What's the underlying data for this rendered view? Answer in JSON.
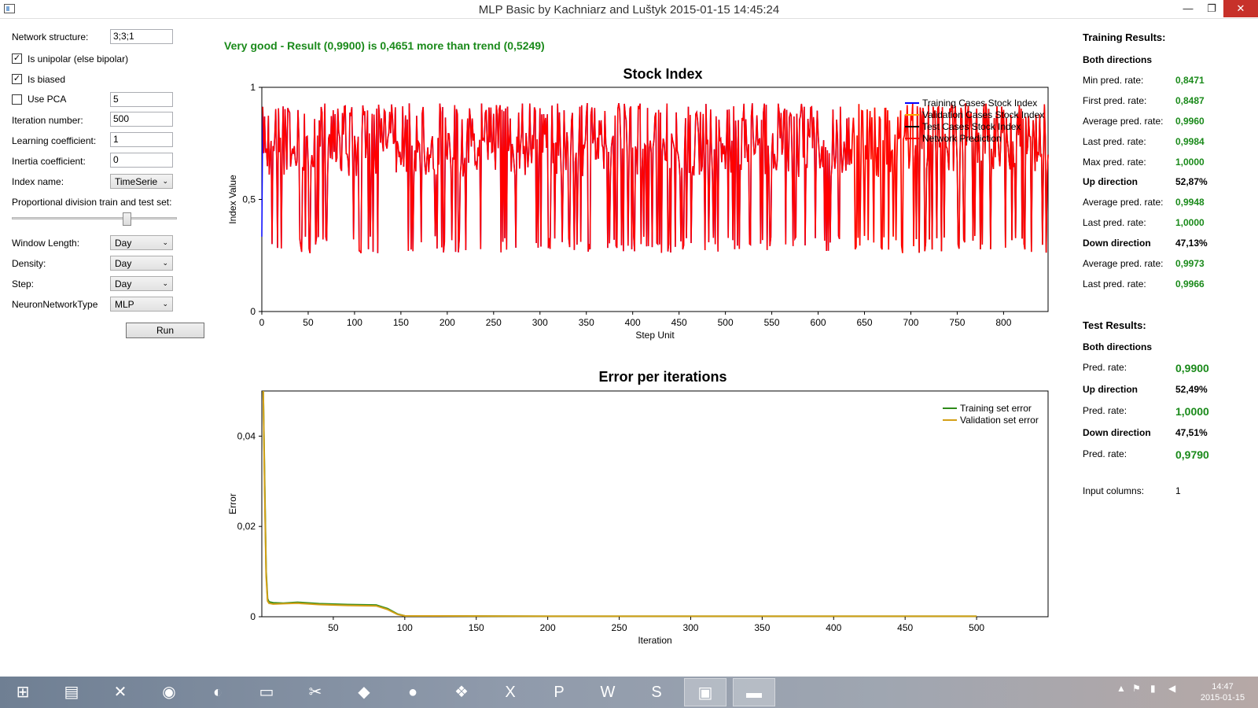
{
  "window": {
    "title": "MLP Basic by Kachniarz and Luštyk 2015-01-15 14:45:24",
    "minimize": "—",
    "maximize": "❐",
    "close": "✕"
  },
  "form": {
    "network_structure_label": "Network structure:",
    "network_structure_value": "3;3;1",
    "unipolar_label": "Is unipolar (else bipolar)",
    "unipolar_checked": true,
    "biased_label": "Is biased",
    "biased_checked": true,
    "pca_label": "Use PCA",
    "pca_checked": false,
    "pca_value": "5",
    "iteration_label": "Iteration number:",
    "iteration_value": "500",
    "learning_label": "Learning coefficient:",
    "learning_value": "1",
    "inertia_label": "Inertia coefficient:",
    "inertia_value": "0",
    "index_name_label": "Index name:",
    "index_name_value": "TimeSerie",
    "proportion_label": "Proportional division train and test set:",
    "proportion_value": 0.69,
    "window_length_label": "Window Length:",
    "window_length_value": "Day",
    "density_label": "Density:",
    "density_value": "Day",
    "step_label": "Step:",
    "step_value": "Day",
    "nn_type_label": "NeuronNetworkType",
    "nn_type_value": "MLP",
    "run_label": "Run"
  },
  "result_message": "Very good - Result (0,9900) is 0,4651 more than trend (0,5249)",
  "chart_data": [
    {
      "type": "line",
      "title": "Stock Index",
      "xlabel": "Step Unit",
      "ylabel": "Index Value",
      "xlim": [
        0,
        848
      ],
      "ylim": [
        0,
        1
      ],
      "xticks": [
        "0",
        "50",
        "100",
        "150",
        "200",
        "250",
        "300",
        "350",
        "400",
        "450",
        "500",
        "550",
        "600",
        "650",
        "700",
        "750",
        "800"
      ],
      "yticks": [
        "0",
        "0,5",
        "1"
      ],
      "series": [
        {
          "name": "Training Cases Stock Index",
          "color": "#0000ff",
          "x_range": [
            0,
            634
          ],
          "y_range": [
            0.26,
            0.93
          ]
        },
        {
          "name": "Validation Cases Stock Index",
          "color": "#ffa500",
          "x_range": [
            634,
            704
          ],
          "y_range": [
            0.26,
            0.93
          ]
        },
        {
          "name": "Test Cases Stock Index",
          "color": "#000000",
          "x_range": [
            704,
            848
          ],
          "y_range": [
            0.26,
            0.93
          ]
        },
        {
          "name": "Network Prediction",
          "color": "#ff0000",
          "x_range": [
            0,
            848
          ],
          "y_range": [
            0.26,
            0.93
          ]
        }
      ],
      "legend": "top-right",
      "grid": false
    },
    {
      "type": "line",
      "title": "Error per iterations",
      "xlabel": "Iteration",
      "ylabel": "Error",
      "xlim": [
        0,
        550
      ],
      "ylim": [
        0,
        0.05
      ],
      "xticks": [
        "50",
        "100",
        "150",
        "200",
        "250",
        "300",
        "350",
        "400",
        "450",
        "500"
      ],
      "yticks": [
        "0",
        "0,02",
        "0,04"
      ],
      "series": [
        {
          "name": "Training set error",
          "color": "#2e8b1a",
          "x": [
            1,
            2,
            3,
            4,
            5,
            8,
            15,
            25,
            40,
            60,
            80,
            88,
            95,
            100,
            200,
            300,
            400,
            500
          ],
          "y": [
            0.05,
            0.03,
            0.01,
            0.004,
            0.0033,
            0.0031,
            0.003,
            0.0032,
            0.0029,
            0.0027,
            0.0026,
            0.0018,
            0.0006,
            0.0002,
            0.0001,
            0.0001,
            0.0001,
            0.0001
          ]
        },
        {
          "name": "Validation set error",
          "color": "#d4a017",
          "x": [
            1,
            2,
            3,
            4,
            5,
            8,
            15,
            25,
            40,
            60,
            80,
            88,
            95,
            100,
            200,
            300,
            400,
            500
          ],
          "y": [
            0.05,
            0.028,
            0.009,
            0.0035,
            0.003,
            0.0028,
            0.0029,
            0.003,
            0.0027,
            0.0025,
            0.0024,
            0.0016,
            0.0005,
            0.0002,
            0.0001,
            0.0001,
            0.0001,
            0.0001
          ]
        }
      ],
      "legend": "top-right",
      "grid": false
    }
  ],
  "training_results": {
    "title": "Training Results:",
    "both_label": "Both directions",
    "rows_both": [
      {
        "label": "Min pred. rate:",
        "value": "0,8471"
      },
      {
        "label": "First pred. rate:",
        "value": "0,8487"
      },
      {
        "label": "Average pred. rate:",
        "value": "0,9960"
      },
      {
        "label": "Last pred. rate:",
        "value": "0,9984"
      },
      {
        "label": "Max pred. rate:",
        "value": "1,0000"
      }
    ],
    "up_label": "Up direction",
    "up_pct": "52,87%",
    "rows_up": [
      {
        "label": "Average pred. rate:",
        "value": "0,9948"
      },
      {
        "label": "Last pred. rate:",
        "value": "1,0000"
      }
    ],
    "down_label": "Down direction",
    "down_pct": "47,13%",
    "rows_down": [
      {
        "label": "Average pred. rate:",
        "value": "0,9973"
      },
      {
        "label": "Last pred. rate:",
        "value": "0,9966"
      }
    ]
  },
  "test_results": {
    "title": "Test Results:",
    "both_label": "Both directions",
    "both_rate_label": "Pred. rate:",
    "both_rate": "0,9900",
    "up_label": "Up direction",
    "up_pct": "52,49%",
    "up_rate_label": "Pred. rate:",
    "up_rate": "1,0000",
    "down_label": "Down direction",
    "down_pct": "47,51%",
    "down_rate_label": "Pred. rate:",
    "down_rate": "0,9790",
    "input_columns_label": "Input columns:",
    "input_columns_value": "1"
  },
  "taskbar": {
    "items": [
      {
        "name": "start-icon",
        "glyph": "⊞"
      },
      {
        "name": "file-explorer-icon",
        "glyph": "▤"
      },
      {
        "name": "app-x-icon",
        "glyph": "✕"
      },
      {
        "name": "chrome-icon",
        "glyph": "◉"
      },
      {
        "name": "gimp-icon",
        "glyph": "◐"
      },
      {
        "name": "folder-icon",
        "glyph": "▭"
      },
      {
        "name": "snipping-tool-icon",
        "glyph": "✂"
      },
      {
        "name": "visual-studio-icon",
        "glyph": "◆"
      },
      {
        "name": "github-icon",
        "glyph": "●"
      },
      {
        "name": "sourcetree-icon",
        "glyph": "❖"
      },
      {
        "name": "excel-icon",
        "glyph": "X"
      },
      {
        "name": "powerpoint-icon",
        "glyph": "P"
      },
      {
        "name": "word-icon",
        "glyph": "W"
      },
      {
        "name": "skype-icon",
        "glyph": "S"
      },
      {
        "name": "mlp-app-icon",
        "glyph": "▣"
      },
      {
        "name": "cmd-icon",
        "glyph": "▬"
      }
    ],
    "clock_time": "14:47",
    "clock_date": "2015-01-15"
  }
}
